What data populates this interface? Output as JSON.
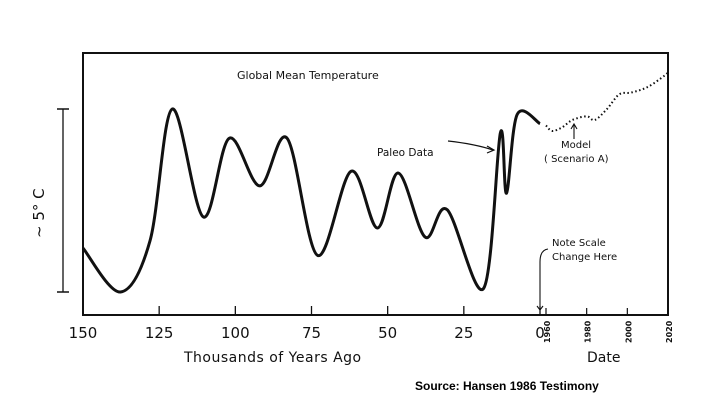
{
  "chart_data": {
    "type": "line",
    "title": "Global Mean Temperature",
    "ylabel": "~ 5° C",
    "xlabel": "Thousands of Years Ago",
    "x2label": "Date",
    "x_ticks": [
      "150",
      "125",
      "100",
      "75",
      "50",
      "25",
      "0"
    ],
    "x2_ticks": [
      "1960",
      "1980",
      "2000",
      "2020"
    ],
    "xlim_kyr_ago": [
      150,
      0
    ],
    "x2lim_year": [
      1960,
      2020
    ],
    "y_scale_bar_degC": 5,
    "series": [
      {
        "name": "Paleo Data",
        "style": "solid",
        "x_unit": "thousand years ago",
        "points": [
          [
            150,
            1.2
          ],
          [
            137.7,
            0
          ],
          [
            128,
            1.4
          ],
          [
            120.7,
            5.0
          ],
          [
            110.5,
            2.05
          ],
          [
            102,
            4.2
          ],
          [
            92,
            2.9
          ],
          [
            83,
            4.2
          ],
          [
            73,
            1.0
          ],
          [
            62,
            3.3
          ],
          [
            53.4,
            1.75
          ],
          [
            46.5,
            3.25
          ],
          [
            37.7,
            1.5
          ],
          [
            30.5,
            2.25
          ],
          [
            18.5,
            0.1
          ],
          [
            13,
            4.35
          ],
          [
            11,
            2.7
          ],
          [
            7.5,
            4.85
          ],
          [
            0,
            4.6
          ]
        ]
      },
      {
        "name": "Model (Scenario A)",
        "style": "dotted",
        "x_unit": "year",
        "points": [
          [
            1960,
            4.55
          ],
          [
            1963,
            4.4
          ],
          [
            1968,
            4.5
          ],
          [
            1973,
            4.7
          ],
          [
            1980,
            4.8
          ],
          [
            1984,
            4.7
          ],
          [
            1990,
            5.0
          ],
          [
            1996,
            5.4
          ],
          [
            2002,
            5.45
          ],
          [
            2010,
            5.6
          ],
          [
            2018,
            5.9
          ],
          [
            2020,
            6.0
          ]
        ]
      }
    ],
    "annotations": {
      "paleo": "Paleo Data",
      "model_line1": "Model",
      "model_line2": "( Scenario A)",
      "scale_line1": "Note Scale",
      "scale_line2": "Change Here"
    }
  },
  "source": "Source: Hansen 1986 Testimony"
}
